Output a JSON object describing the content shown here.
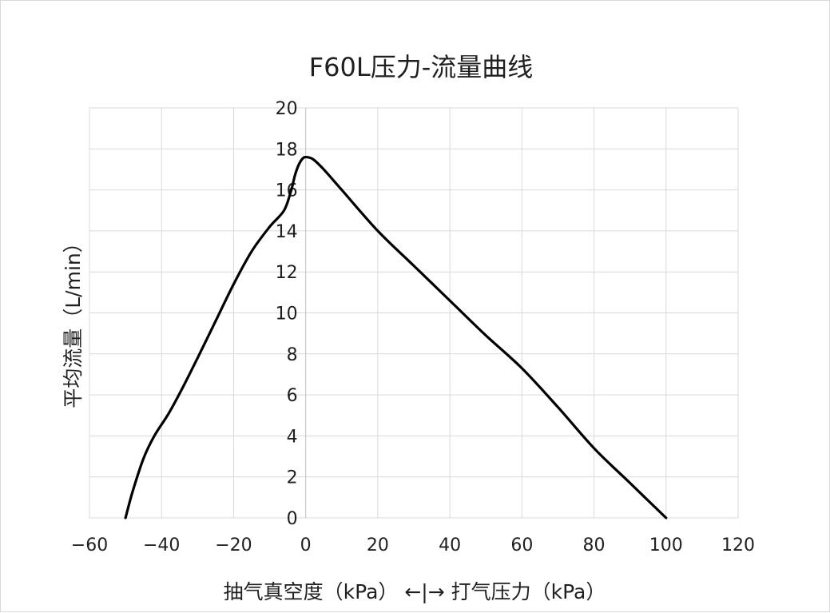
{
  "chart_data": {
    "type": "line",
    "title": "F60L压力-流量曲线",
    "xlabel": "抽气真空度（kPa） ←|→ 打气压力（kPa）",
    "ylabel": "平均流量（L/min）",
    "xlim": [
      -60,
      120
    ],
    "ylim": [
      0,
      20
    ],
    "x_ticks": [
      -60,
      -40,
      -20,
      0,
      20,
      40,
      60,
      80,
      100,
      120
    ],
    "y_ticks": [
      0,
      2,
      4,
      6,
      8,
      10,
      12,
      14,
      16,
      18,
      20
    ],
    "grid": true,
    "legend": "none",
    "line_color": "#000000",
    "series": [
      {
        "x": [
          -50,
          -48,
          -45,
          -42,
          -38,
          -34,
          -30,
          -25,
          -20,
          -15,
          -10,
          -6,
          -4,
          -3,
          -2,
          -1,
          0,
          2,
          5,
          10,
          20,
          30,
          40,
          50,
          60,
          70,
          80,
          90,
          100
        ],
        "y": [
          0,
          1.3,
          2.9,
          4.0,
          5.1,
          6.4,
          7.8,
          9.6,
          11.4,
          13.0,
          14.2,
          15.0,
          16.0,
          16.7,
          17.2,
          17.5,
          17.6,
          17.5,
          17.0,
          16.0,
          14.0,
          12.3,
          10.6,
          8.9,
          7.3,
          5.4,
          3.4,
          1.7,
          0
        ]
      }
    ]
  }
}
